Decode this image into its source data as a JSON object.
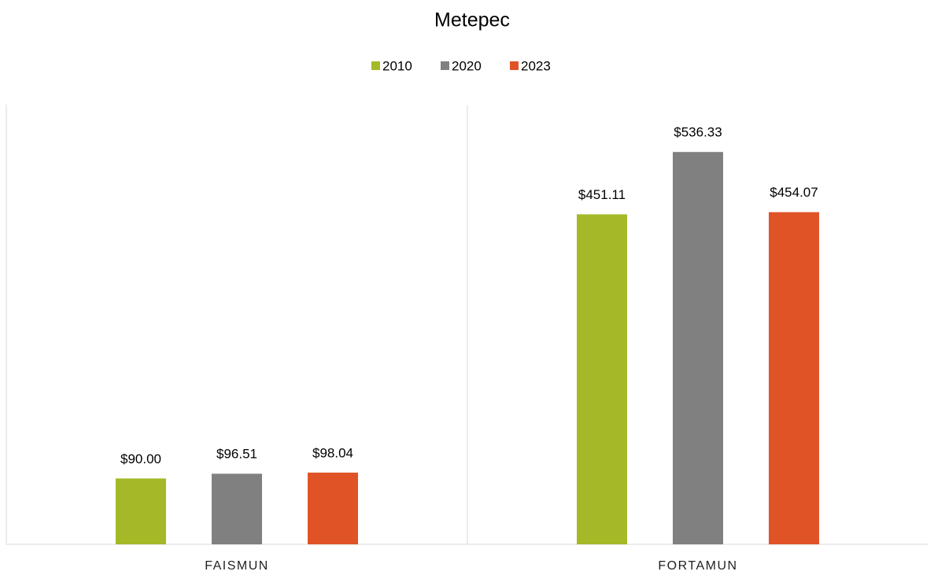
{
  "chart_data": {
    "type": "bar",
    "title": "Metepec",
    "categories": [
      "FAISMUN",
      "FORTAMUN"
    ],
    "series": [
      {
        "name": "2010",
        "color": "#a5b828",
        "values": [
          90.0,
          451.11
        ],
        "value_labels": [
          "$90.00",
          "$451.11"
        ]
      },
      {
        "name": "2020",
        "color": "#808080",
        "values": [
          96.51,
          536.33
        ],
        "value_labels": [
          "$96.51",
          "$536.33"
        ]
      },
      {
        "name": "2023",
        "color": "#e05327",
        "values": [
          98.04,
          454.07
        ],
        "value_labels": [
          "$98.04",
          "$454.07"
        ]
      }
    ],
    "ylim": [
      0,
      600
    ]
  }
}
